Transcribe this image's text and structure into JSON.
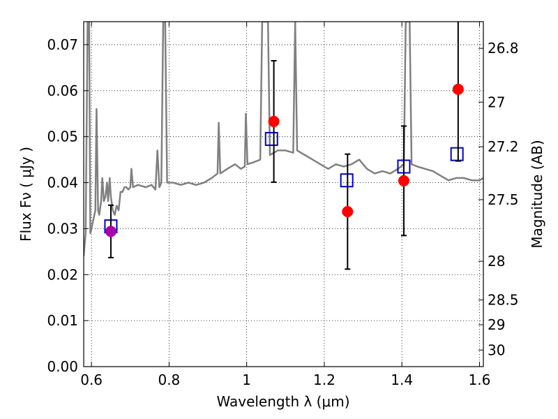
{
  "chart_data": {
    "type": "scatter",
    "xlabel": "Wavelength  λ (μm)",
    "ylabel_left": "Flux  Fν  ( μJy )",
    "ylabel_right": "Magnitude (AB)",
    "xlim": [
      0.58,
      1.61
    ],
    "ylim": [
      0.0,
      0.075
    ],
    "x_ticks": [
      0.6,
      0.8,
      1.0,
      1.2,
      1.4,
      1.6
    ],
    "x_tick_labels": [
      "0.6",
      "0.8",
      "1",
      "1.2",
      "1.4",
      "1.6"
    ],
    "y_ticks": [
      0.0,
      0.01,
      0.02,
      0.03,
      0.04,
      0.05,
      0.06,
      0.07
    ],
    "y_tick_labels": [
      "0.00",
      "0.01",
      "0.02",
      "0.03",
      "0.04",
      "0.05",
      "0.06",
      "0.07"
    ],
    "right_axis_ticks": [
      {
        "label": "26.8",
        "flux": 0.0692
      },
      {
        "label": "27",
        "flux": 0.0575
      },
      {
        "label": "27.2",
        "flux": 0.0478
      },
      {
        "label": "27.5",
        "flux": 0.0363
      },
      {
        "label": "28",
        "flux": 0.0229
      },
      {
        "label": "28.5",
        "flux": 0.0145
      },
      {
        "label": "29",
        "flux": 0.0091
      },
      {
        "label": "30",
        "flux": 0.0036
      }
    ],
    "grid": true,
    "series": [
      {
        "kind": "line",
        "color": "#808080",
        "points": [
          [
            0.58,
            0.024
          ],
          [
            0.585,
            0.029
          ],
          [
            0.59,
            0.075
          ],
          [
            0.594,
            0.075
          ],
          [
            0.597,
            0.029
          ],
          [
            0.6,
            0.03
          ],
          [
            0.605,
            0.032
          ],
          [
            0.61,
            0.034
          ],
          [
            0.613,
            0.056
          ],
          [
            0.617,
            0.034
          ],
          [
            0.62,
            0.033
          ],
          [
            0.625,
            0.036
          ],
          [
            0.628,
            0.041
          ],
          [
            0.632,
            0.036
          ],
          [
            0.636,
            0.037
          ],
          [
            0.64,
            0.04
          ],
          [
            0.643,
            0.036
          ],
          [
            0.647,
            0.041
          ],
          [
            0.65,
            0.037
          ],
          [
            0.655,
            0.034
          ],
          [
            0.66,
            0.033
          ],
          [
            0.665,
            0.035
          ],
          [
            0.67,
            0.034
          ],
          [
            0.675,
            0.038
          ],
          [
            0.68,
            0.038
          ],
          [
            0.685,
            0.039
          ],
          [
            0.69,
            0.039
          ],
          [
            0.695,
            0.0385
          ],
          [
            0.7,
            0.039
          ],
          [
            0.703,
            0.043
          ],
          [
            0.707,
            0.039
          ],
          [
            0.72,
            0.0395
          ],
          [
            0.74,
            0.039
          ],
          [
            0.755,
            0.0395
          ],
          [
            0.76,
            0.039
          ],
          [
            0.765,
            0.0385
          ],
          [
            0.77,
            0.047
          ],
          [
            0.775,
            0.039
          ],
          [
            0.78,
            0.04
          ],
          [
            0.785,
            0.075
          ],
          [
            0.79,
            0.075
          ],
          [
            0.795,
            0.04
          ],
          [
            0.81,
            0.04
          ],
          [
            0.83,
            0.0395
          ],
          [
            0.85,
            0.04
          ],
          [
            0.87,
            0.0395
          ],
          [
            0.89,
            0.04
          ],
          [
            0.91,
            0.041
          ],
          [
            0.925,
            0.042
          ],
          [
            0.928,
            0.053
          ],
          [
            0.932,
            0.042
          ],
          [
            0.95,
            0.043
          ],
          [
            0.97,
            0.044
          ],
          [
            0.985,
            0.043
          ],
          [
            0.995,
            0.0435
          ],
          [
            0.998,
            0.055
          ],
          [
            1.002,
            0.044
          ],
          [
            1.02,
            0.0445
          ],
          [
            1.035,
            0.045
          ],
          [
            1.04,
            0.075
          ],
          [
            1.055,
            0.075
          ],
          [
            1.06,
            0.046
          ],
          [
            1.08,
            0.047
          ],
          [
            1.1,
            0.047
          ],
          [
            1.12,
            0.0465
          ],
          [
            1.125,
            0.075
          ],
          [
            1.13,
            0.047
          ],
          [
            1.15,
            0.046
          ],
          [
            1.17,
            0.045
          ],
          [
            1.19,
            0.044
          ],
          [
            1.21,
            0.043
          ],
          [
            1.23,
            0.044
          ],
          [
            1.25,
            0.0435
          ],
          [
            1.27,
            0.044
          ],
          [
            1.29,
            0.045
          ],
          [
            1.31,
            0.043
          ],
          [
            1.33,
            0.042
          ],
          [
            1.35,
            0.0425
          ],
          [
            1.37,
            0.042
          ],
          [
            1.39,
            0.043
          ],
          [
            1.405,
            0.044
          ],
          [
            1.41,
            0.075
          ],
          [
            1.42,
            0.075
          ],
          [
            1.425,
            0.044
          ],
          [
            1.44,
            0.0435
          ],
          [
            1.46,
            0.043
          ],
          [
            1.48,
            0.0425
          ],
          [
            1.5,
            0.0415
          ],
          [
            1.52,
            0.0405
          ],
          [
            1.54,
            0.041
          ],
          [
            1.56,
            0.041
          ],
          [
            1.58,
            0.0405
          ],
          [
            1.6,
            0.0405
          ],
          [
            1.61,
            0.041
          ]
        ]
      },
      {
        "kind": "squares",
        "color": "#0000cc",
        "points": [
          [
            0.65,
            0.0305
          ],
          [
            1.064,
            0.0495
          ],
          [
            1.258,
            0.0405
          ],
          [
            1.405,
            0.0435
          ],
          [
            1.542,
            0.0462
          ]
        ]
      },
      {
        "kind": "errorbar-points",
        "points": [
          {
            "x": 0.65,
            "y": 0.0294,
            "err": 0.0057,
            "color": "#aa00aa"
          },
          {
            "x": 1.07,
            "y": 0.0533,
            "err": 0.0132,
            "color": "#ff0000"
          },
          {
            "x": 1.26,
            "y": 0.0337,
            "err": 0.0125,
            "color": "#ff0000"
          },
          {
            "x": 1.405,
            "y": 0.0404,
            "err": 0.0119,
            "color": "#ff0000"
          },
          {
            "x": 1.545,
            "y": 0.0603,
            "err": 0.0156,
            "color": "#ff0000"
          }
        ]
      }
    ]
  }
}
